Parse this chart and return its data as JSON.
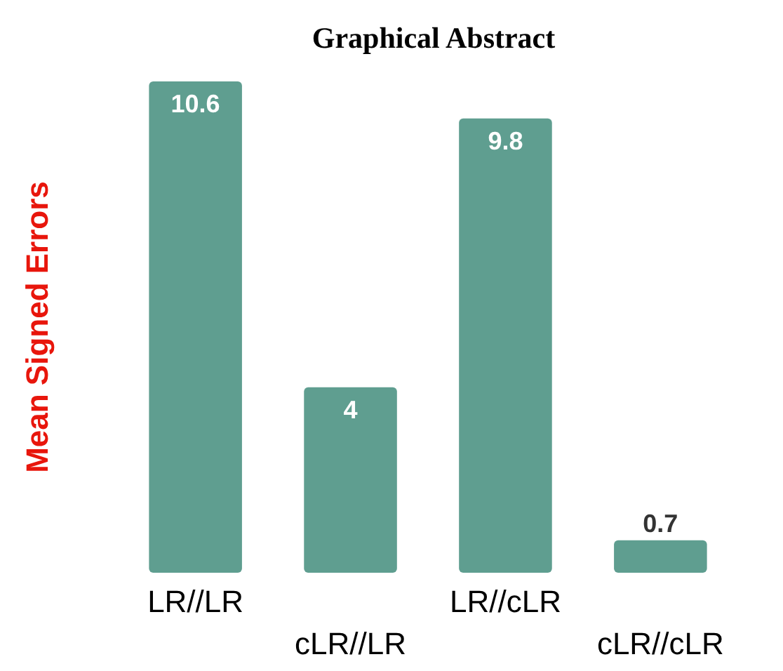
{
  "chart_data": {
    "type": "bar",
    "title": "Graphical Abstract",
    "ylabel": "Mean Signed Errors",
    "categories": [
      "LR//LR",
      "cLR//LR",
      "LR//cLR",
      "cLR//cLR"
    ],
    "values": [
      10.6,
      4,
      9.8,
      0.7
    ],
    "color": "#5f9e90",
    "data_labels": true
  }
}
